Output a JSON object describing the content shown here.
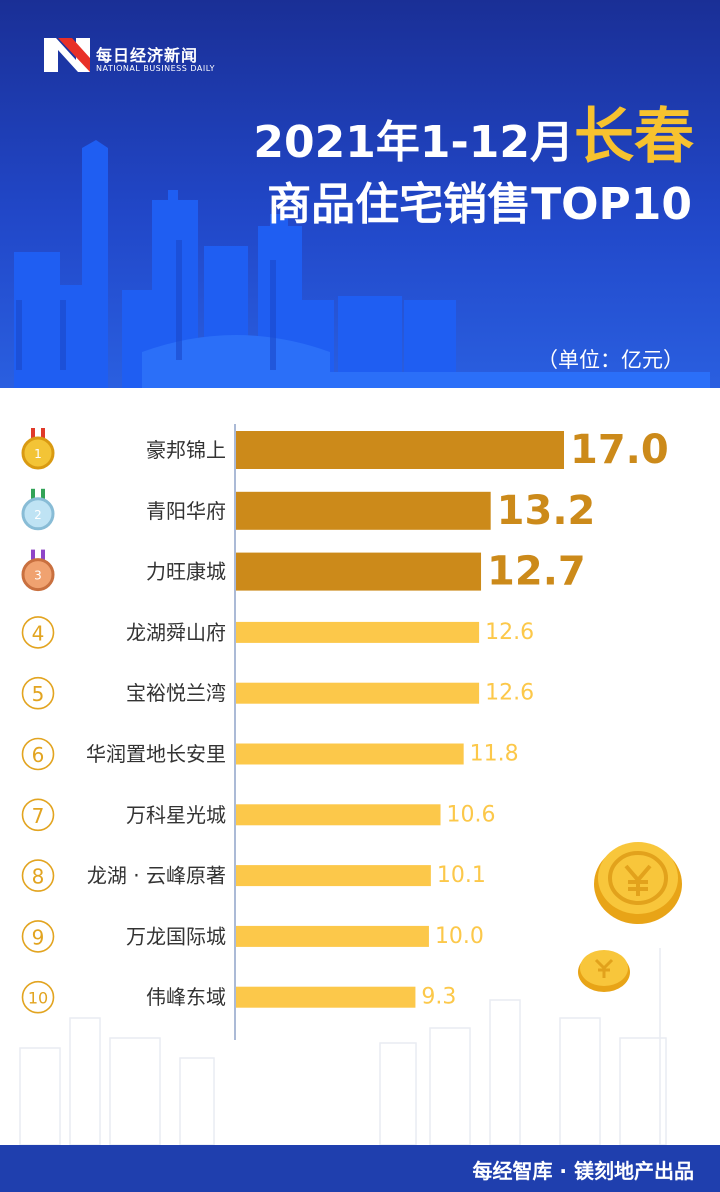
{
  "header": {
    "logo_name": "每日经济新闻",
    "logo_subtitle": "NATIONAL BUSINESS DAILY",
    "title_prefix": "2021年1-12月",
    "title_city": "长春",
    "title_line2": "商品住宅销售TOP10",
    "unit": "（单位：亿元）"
  },
  "chart_data": {
    "type": "bar",
    "orientation": "horizontal",
    "categories": [
      "豪邦锦上",
      "青阳华府",
      "力旺康城",
      "龙湖舜山府",
      "宝裕悦兰湾",
      "华润置地长安里",
      "万科星光城",
      "龙湖 · 云峰原著",
      "万龙国际城",
      "伟峰东域"
    ],
    "ranks": [
      "1",
      "2",
      "3",
      "4",
      "5",
      "6",
      "7",
      "8",
      "9",
      "10"
    ],
    "values": [
      17.0,
      13.2,
      12.7,
      12.6,
      12.6,
      11.8,
      10.6,
      10.1,
      10.0,
      9.3
    ],
    "value_labels": [
      "17.0",
      "13.2",
      "12.7",
      "12.6",
      "12.6",
      "11.8",
      "10.6",
      "10.1",
      "10.0",
      "9.3"
    ],
    "top_color": "#cc8a1a",
    "rest_color": "#fcc84a"
  },
  "footer": {
    "text": "每经智库 · 镁刻地产出品"
  }
}
